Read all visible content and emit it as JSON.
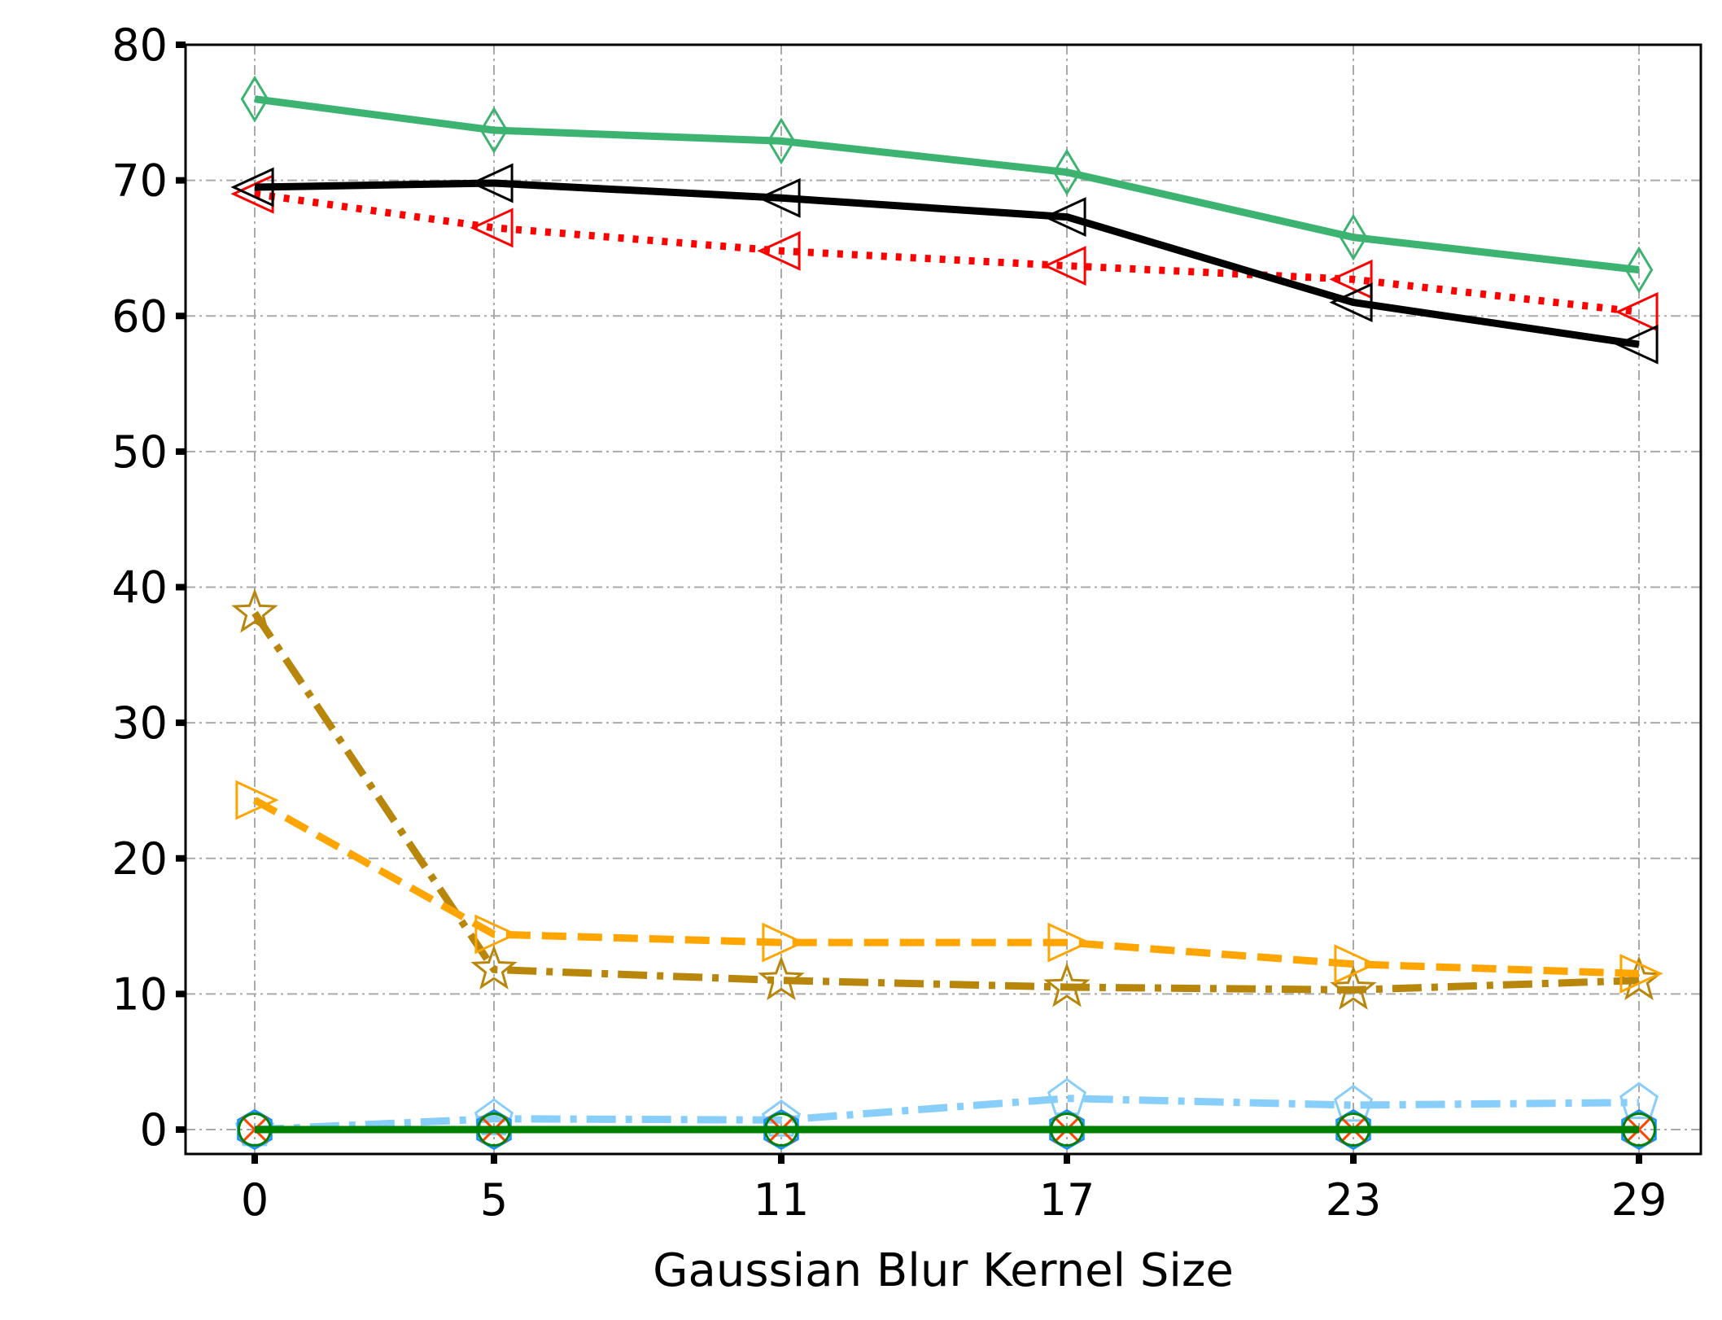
{
  "chart_data": {
    "type": "line",
    "title": "",
    "xlabel": "Gaussian Blur Kernel Size",
    "ylabel": "",
    "x": [
      0,
      5,
      11,
      17,
      23,
      29
    ],
    "x_tick_labels": [
      "0",
      "5",
      "11",
      "17",
      "23",
      "29"
    ],
    "y_ticks": [
      0,
      10,
      20,
      30,
      40,
      50,
      60,
      70,
      80
    ],
    "y_tick_labels": [
      "0",
      "10",
      "20",
      "30",
      "40",
      "50",
      "60",
      "70",
      "80"
    ],
    "ylim": [
      -2,
      80
    ],
    "grid": true,
    "legend": "none",
    "series": [
      {
        "values": [
          76.0,
          73.7,
          72.9,
          70.6,
          65.8,
          63.4
        ],
        "color": "#3CB371",
        "dash": "solid",
        "marker": "thin-diamond"
      },
      {
        "values": [
          69.0,
          66.5,
          64.8,
          63.7,
          62.7,
          60.3
        ],
        "color": "#FF0000",
        "dash": "dotted",
        "marker": "triangle-left"
      },
      {
        "values": [
          69.5,
          69.8,
          68.7,
          67.3,
          61.0,
          57.9
        ],
        "color": "#000000",
        "dash": "solid",
        "marker": "triangle-left"
      },
      {
        "values": [
          38.1,
          11.8,
          11.0,
          10.5,
          10.3,
          11.0
        ],
        "color": "#B8860B",
        "dash": "dashdot",
        "marker": "star"
      },
      {
        "values": [
          24.3,
          14.4,
          13.8,
          13.8,
          12.2,
          11.5
        ],
        "color": "#FFA500",
        "dash": "dashed",
        "marker": "triangle-right"
      },
      {
        "values": [
          0.0,
          0.8,
          0.7,
          2.3,
          1.8,
          2.0
        ],
        "color": "#87CEFA",
        "dash": "dashdot",
        "marker": "pentagon"
      },
      {
        "values": [
          0.0,
          0.0,
          0.0,
          0.0,
          0.0,
          0.0
        ],
        "color": "#1E90FF",
        "dash": "dashdot",
        "marker": "hexagon"
      },
      {
        "values": [
          0.0,
          0.0,
          0.0,
          0.0,
          0.0,
          0.0
        ],
        "color": "#FF4500",
        "dash": "dotted",
        "marker": "x"
      },
      {
        "values": [
          0.0,
          0.0,
          0.0,
          0.0,
          0.0,
          0.0
        ],
        "color": "#008000",
        "dash": "solid",
        "marker": "circle"
      }
    ]
  }
}
